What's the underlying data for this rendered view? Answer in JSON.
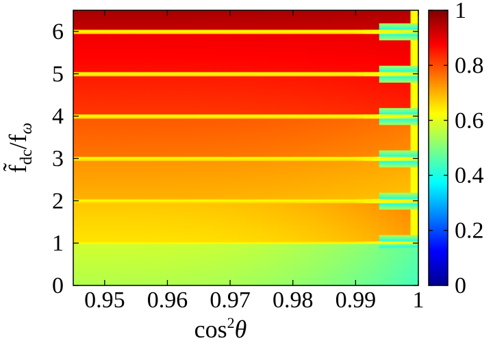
{
  "chart_data": {
    "type": "heatmap",
    "title": "",
    "xlabel": "cos²θ",
    "xlabel_parts": {
      "base": "cos",
      "sup": "2",
      "theta": "θ"
    },
    "ylabel": "f̃dc/fω",
    "ylabel_parts": {
      "f1": "f̃",
      "sub1": "dc",
      "slash": "/f",
      "sub2": "ω"
    },
    "xlim": [
      0.945,
      1.0
    ],
    "ylim": [
      0,
      6.5
    ],
    "x_ticks": [
      0.95,
      0.96,
      0.97,
      0.98,
      0.99,
      1
    ],
    "x_tick_labels": [
      "0.95",
      "0.96",
      "0.97",
      "0.98",
      "0.99",
      "1"
    ],
    "y_ticks": [
      0,
      1,
      2,
      3,
      4,
      5,
      6
    ],
    "y_tick_labels": [
      "0",
      "1",
      "2",
      "3",
      "4",
      "5",
      "6"
    ],
    "colorbar": {
      "range": [
        0,
        1
      ],
      "ticks": [
        0,
        0.2,
        0.4,
        0.6,
        0.8,
        1
      ],
      "tick_labels": [
        "0",
        "0.2",
        "0.4",
        "0.6",
        "0.8",
        "1"
      ],
      "colormap": "jet"
    },
    "resonance_lines_y": [
      1,
      2,
      3,
      4,
      5,
      6
    ],
    "bands": [
      {
        "y_range": [
          0,
          1
        ],
        "value_left": 0.55,
        "value_right": 0.44
      },
      {
        "y_range": [
          1,
          2
        ],
        "value_left": 0.65,
        "value_right": 0.72
      },
      {
        "y_range": [
          2,
          3
        ],
        "value_left": 0.7,
        "value_right": 0.68
      },
      {
        "y_range": [
          3,
          4
        ],
        "value_left": 0.76,
        "value_right": 0.73
      },
      {
        "y_range": [
          4,
          5
        ],
        "value_left": 0.82,
        "value_right": 0.84
      },
      {
        "y_range": [
          5,
          6
        ],
        "value_left": 0.86,
        "value_right": 0.87
      },
      {
        "y_range": [
          6,
          6.5
        ],
        "value_left": 0.93,
        "value_right": 0.92
      }
    ],
    "grid": false,
    "legend": "none"
  }
}
